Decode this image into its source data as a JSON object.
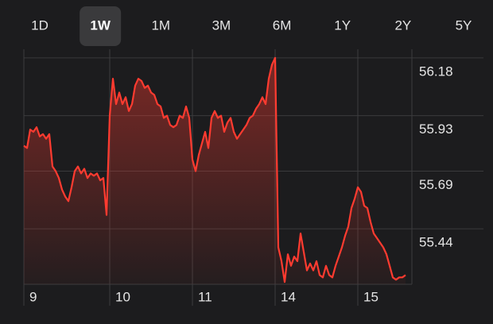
{
  "range_tabs": [
    "1D",
    "1W",
    "1M",
    "3M",
    "6M",
    "1Y",
    "2Y",
    "5Y"
  ],
  "selected_tab": 1,
  "chart_data": {
    "type": "line",
    "color": "#ff3b30",
    "grid": true,
    "x": [
      0,
      1,
      2,
      3,
      4,
      5,
      6,
      7,
      8,
      9,
      10,
      11,
      12,
      13,
      14,
      15,
      16,
      17,
      18,
      19,
      20,
      21,
      22,
      23,
      24,
      25,
      26,
      27,
      28,
      29,
      30,
      31,
      32,
      33,
      34,
      35,
      36,
      37,
      38,
      39,
      40,
      41,
      42,
      43,
      44,
      45,
      46,
      47,
      48,
      49,
      50,
      51,
      52,
      53,
      54,
      55,
      56,
      57,
      58,
      59,
      60,
      61,
      62,
      63,
      64,
      65,
      66,
      67,
      68,
      69,
      70,
      71,
      72,
      73,
      74,
      75,
      76,
      77,
      78,
      79,
      80,
      81,
      82,
      83,
      84,
      85,
      86,
      87,
      88,
      89,
      90,
      91,
      92,
      93,
      94,
      95,
      96,
      97,
      98,
      99,
      100,
      101,
      102,
      103,
      104,
      105,
      106,
      107,
      108,
      109,
      110,
      111,
      112,
      113,
      114,
      115,
      116,
      117,
      118,
      119,
      120
    ],
    "values": [
      55.8,
      55.79,
      55.87,
      55.86,
      55.88,
      55.84,
      55.85,
      55.83,
      55.85,
      55.71,
      55.69,
      55.66,
      55.61,
      55.58,
      55.56,
      55.62,
      55.69,
      55.71,
      55.68,
      55.7,
      55.66,
      55.68,
      55.67,
      55.68,
      55.65,
      55.66,
      55.5,
      55.93,
      56.09,
      55.98,
      56.03,
      55.98,
      56.01,
      55.95,
      55.98,
      56.06,
      56.09,
      56.08,
      56.05,
      56.06,
      56.03,
      56.02,
      55.98,
      55.97,
      55.92,
      55.93,
      55.89,
      55.88,
      55.89,
      55.93,
      55.92,
      55.97,
      55.92,
      55.74,
      55.69,
      55.76,
      55.81,
      55.86,
      55.79,
      55.92,
      55.95,
      55.92,
      55.93,
      55.86,
      55.9,
      55.92,
      55.86,
      55.83,
      55.85,
      55.87,
      55.89,
      55.92,
      55.93,
      55.96,
      55.98,
      56.01,
      55.98,
      56.09,
      56.15,
      56.18,
      55.36,
      55.3,
      55.21,
      55.33,
      55.28,
      55.32,
      55.3,
      55.42,
      55.34,
      55.26,
      55.29,
      55.26,
      55.3,
      55.24,
      55.23,
      55.28,
      55.24,
      55.23,
      55.28,
      55.32,
      55.36,
      55.41,
      55.45,
      55.53,
      55.57,
      55.62,
      55.6,
      55.54,
      55.53,
      55.47,
      55.42,
      55.4,
      55.38,
      55.36,
      55.33,
      55.28,
      55.23,
      55.22,
      55.23,
      55.23,
      55.24
    ],
    "xlim": [
      0,
      122
    ],
    "xticks": [
      {
        "value": 0,
        "label": "9"
      },
      {
        "value": 27,
        "label": "10"
      },
      {
        "value": 53,
        "label": "11"
      },
      {
        "value": 79,
        "label": "14"
      },
      {
        "value": 105,
        "label": "15"
      }
    ],
    "ylim": [
      55.2,
      56.19
    ],
    "yticks": [
      56.18,
      55.93,
      55.69,
      55.44
    ]
  }
}
